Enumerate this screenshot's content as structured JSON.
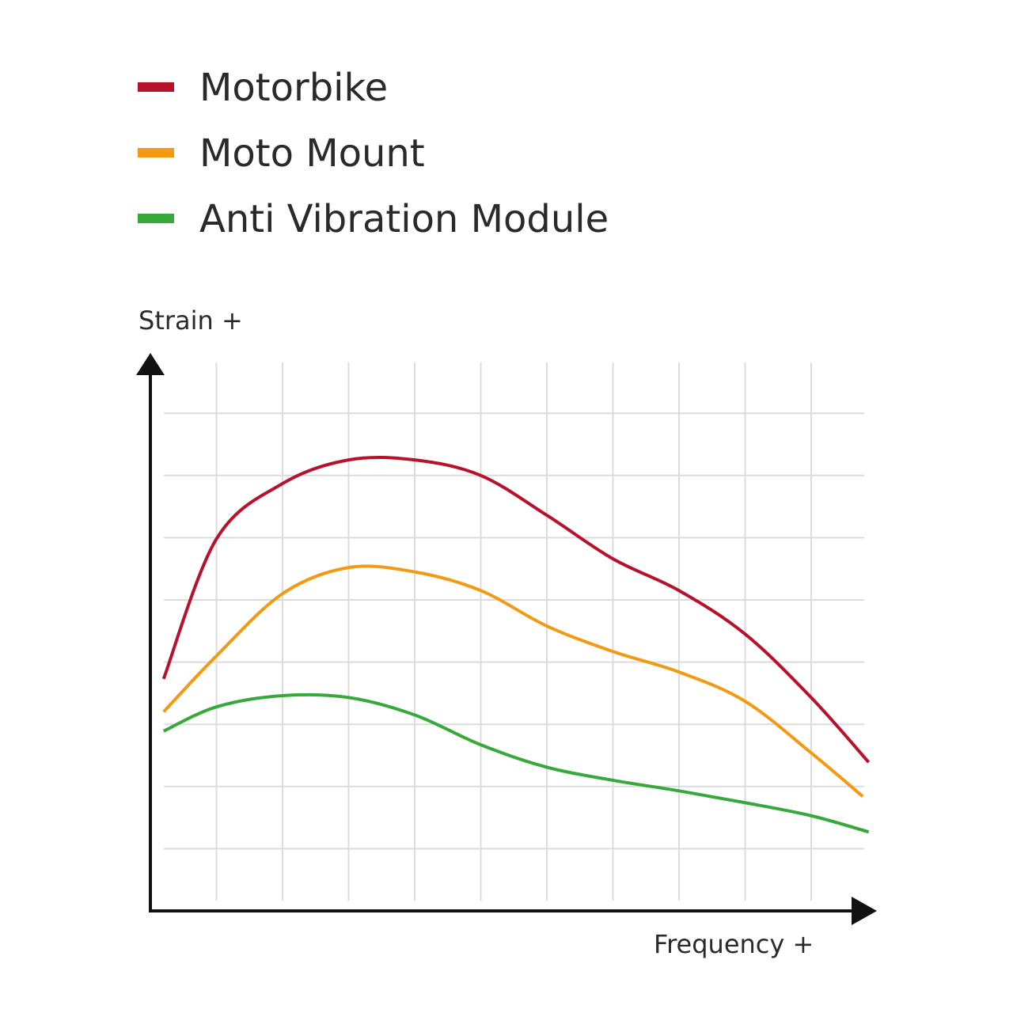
{
  "chart_data": {
    "type": "line",
    "title": "",
    "xlabel": "Frequency +",
    "ylabel": "Strain +",
    "grid": true,
    "legend_position": "top-left",
    "xlim": [
      0,
      11
    ],
    "ylim": [
      0,
      8.5
    ],
    "series": [
      {
        "name": "Motorbike",
        "color": "#b8112c",
        "x": [
          0.2,
          1,
          2,
          3,
          4,
          5,
          6,
          7,
          8,
          9,
          10,
          10.87
        ],
        "y": [
          3.73,
          5.98,
          6.87,
          7.25,
          7.25,
          7.0,
          6.36,
          5.66,
          5.15,
          4.45,
          3.43,
          2.39
        ]
      },
      {
        "name": "Moto Mount",
        "color": "#f39a14",
        "x": [
          0.2,
          1,
          2,
          3,
          4,
          5,
          6,
          7,
          8,
          9,
          10,
          10.78
        ],
        "y": [
          3.2,
          4.1,
          5.1,
          5.52,
          5.45,
          5.15,
          4.58,
          4.17,
          3.84,
          3.37,
          2.54,
          1.84
        ]
      },
      {
        "name": "Anti Vibration Module",
        "color": "#36a93a",
        "x": [
          0.2,
          1,
          2,
          3,
          4,
          5,
          6,
          7,
          8,
          9,
          10,
          10.87
        ],
        "y": [
          2.89,
          3.28,
          3.46,
          3.43,
          3.15,
          2.67,
          2.31,
          2.1,
          1.93,
          1.74,
          1.53,
          1.27
        ]
      }
    ]
  }
}
